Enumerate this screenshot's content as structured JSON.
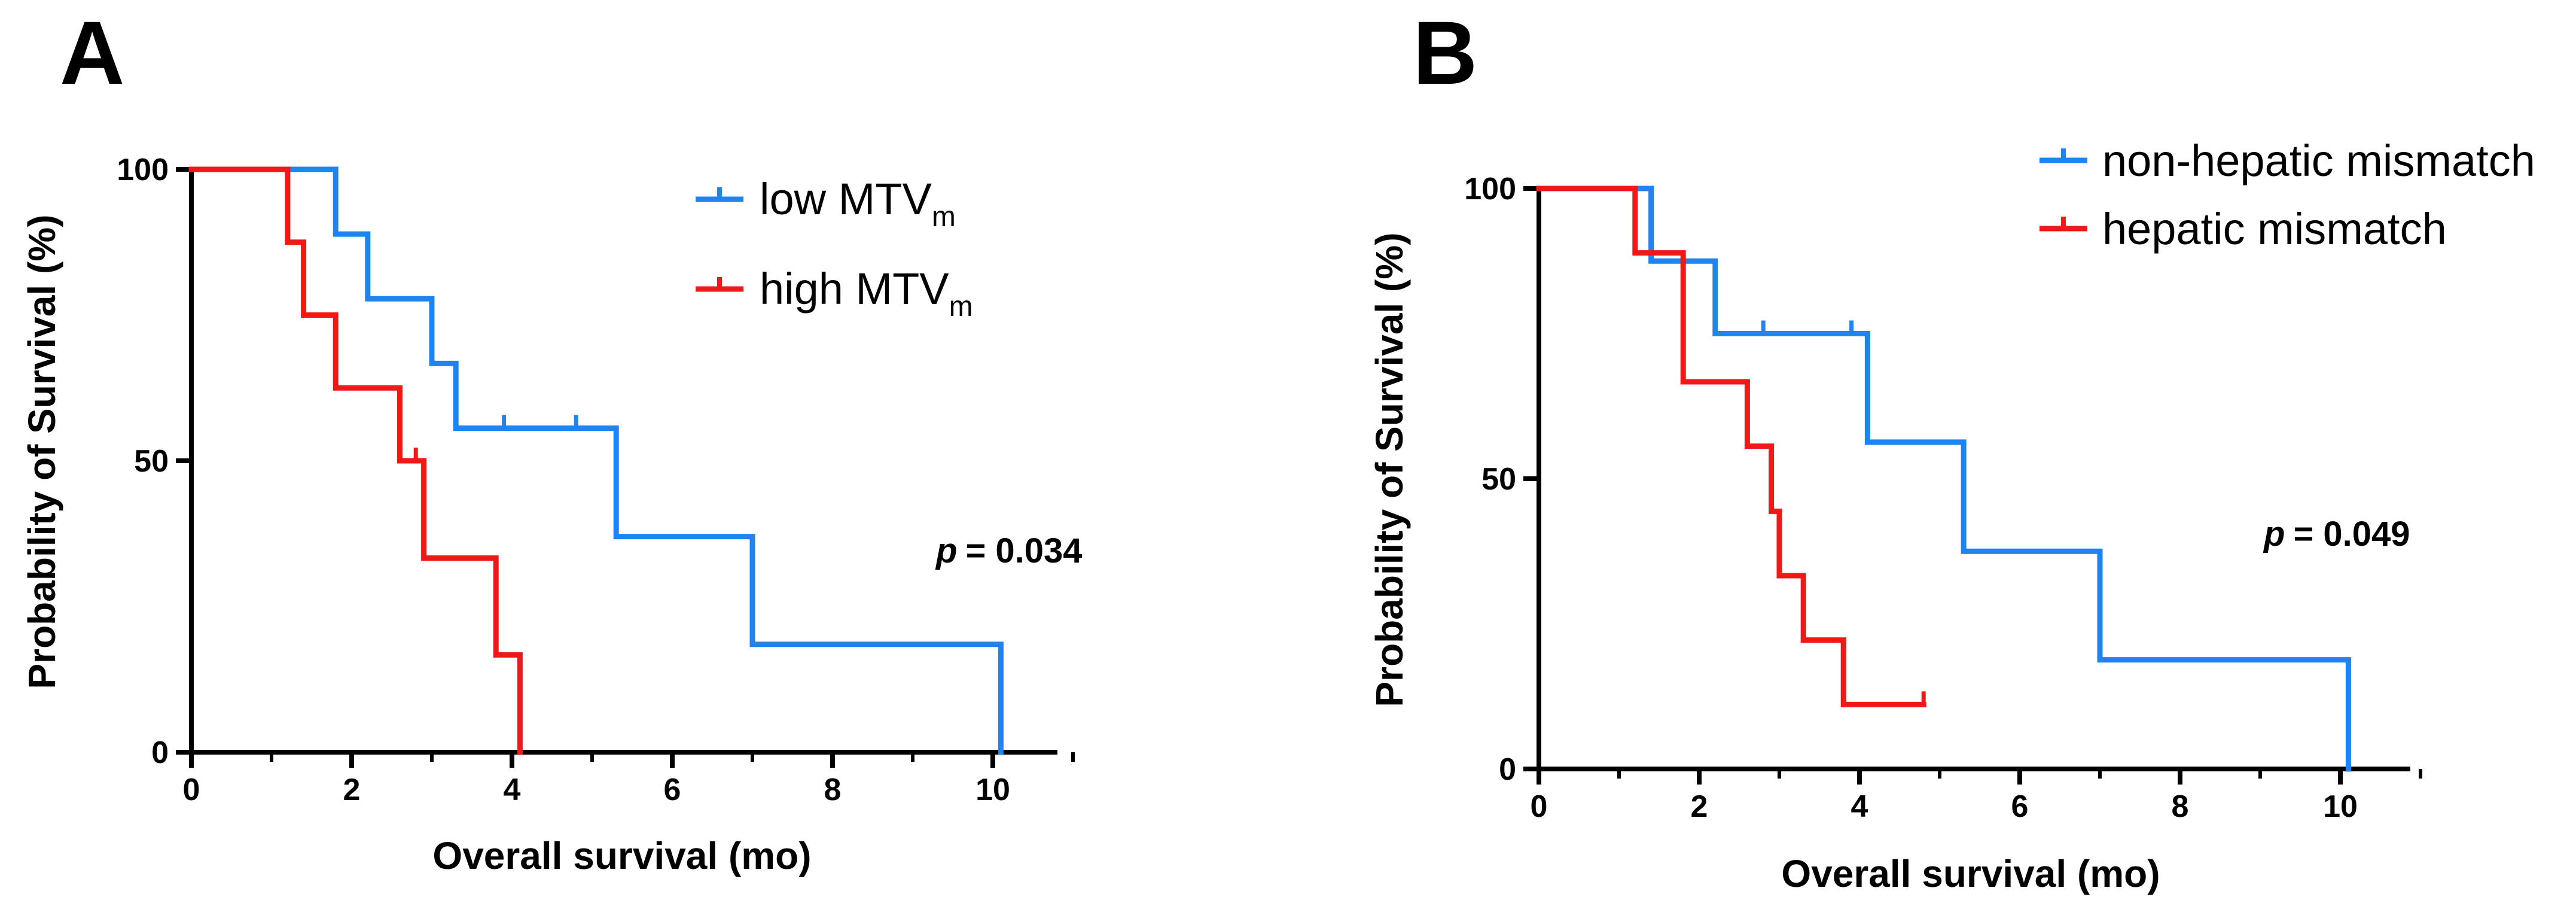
{
  "chart_data": [
    {
      "type": "line",
      "subtype": "kaplan-meier",
      "panel_label": "A",
      "xlabel": "Overall survival (mo)",
      "ylabel": "Probability of Survival (%)",
      "xlim": [
        0,
        11
      ],
      "ylim": [
        0,
        100
      ],
      "xticks": [
        "0",
        "2",
        "4",
        "6",
        "8",
        "10"
      ],
      "yticks": [
        "0",
        "50",
        "100"
      ],
      "p_label": "p",
      "p_value": "= 0.034",
      "legend_position": "top-right",
      "series": [
        {
          "name": "low MTV",
          "name_main": "low MTV",
          "name_sub": "m",
          "color": "#1f84f0",
          "steps": [
            [
              0,
              100
            ],
            [
              1.8,
              100
            ],
            [
              1.8,
              88.9
            ],
            [
              2.2,
              88.9
            ],
            [
              2.2,
              77.8
            ],
            [
              3.0,
              77.8
            ],
            [
              3.0,
              66.7
            ],
            [
              3.3,
              66.7
            ],
            [
              3.3,
              55.6
            ],
            [
              5.3,
              55.6
            ],
            [
              5.3,
              37.0
            ],
            [
              7.0,
              37.0
            ],
            [
              7.0,
              18.5
            ],
            [
              10.1,
              18.5
            ],
            [
              10.1,
              0
            ]
          ],
          "censored": [
            [
              3.9,
              55.6
            ],
            [
              4.8,
              55.6
            ]
          ]
        },
        {
          "name": "high MTV",
          "name_main": "high MTV",
          "name_sub": "m",
          "color": "#f01818",
          "steps": [
            [
              0,
              100
            ],
            [
              1.2,
              100
            ],
            [
              1.2,
              87.5
            ],
            [
              1.4,
              87.5
            ],
            [
              1.4,
              75.0
            ],
            [
              1.8,
              75.0
            ],
            [
              1.8,
              62.5
            ],
            [
              2.6,
              62.5
            ],
            [
              2.6,
              50.0
            ],
            [
              2.9,
              50.0
            ],
            [
              2.9,
              33.3
            ],
            [
              3.8,
              33.3
            ],
            [
              3.8,
              16.7
            ],
            [
              4.1,
              16.7
            ],
            [
              4.1,
              0
            ]
          ],
          "censored": [
            [
              2.8,
              50.0
            ]
          ]
        }
      ]
    },
    {
      "type": "line",
      "subtype": "kaplan-meier",
      "panel_label": "B",
      "xlabel": "Overall survival (mo)",
      "ylabel": "Probability of Survival (%)",
      "xlim": [
        0,
        11
      ],
      "ylim": [
        0,
        100
      ],
      "xticks": [
        "0",
        "2",
        "4",
        "6",
        "8",
        "10"
      ],
      "yticks": [
        "0",
        "50",
        "100"
      ],
      "p_label": "p",
      "p_value": "= 0.049",
      "legend_position": "top-right",
      "series": [
        {
          "name": "non-hepatic mismatch",
          "color": "#1f84f0",
          "steps": [
            [
              0,
              100
            ],
            [
              1.4,
              100
            ],
            [
              1.4,
              87.5
            ],
            [
              2.2,
              87.5
            ],
            [
              2.2,
              75.0
            ],
            [
              4.1,
              75.0
            ],
            [
              4.1,
              56.3
            ],
            [
              5.3,
              56.3
            ],
            [
              5.3,
              37.5
            ],
            [
              7.0,
              37.5
            ],
            [
              7.0,
              18.8
            ],
            [
              10.1,
              18.8
            ],
            [
              10.1,
              0
            ]
          ],
          "censored": [
            [
              2.8,
              75.0
            ],
            [
              3.9,
              75.0
            ]
          ]
        },
        {
          "name": "hepatic mismatch",
          "color": "#f01818",
          "steps": [
            [
              0,
              100
            ],
            [
              1.2,
              100
            ],
            [
              1.2,
              88.9
            ],
            [
              1.8,
              88.9
            ],
            [
              1.8,
              66.7
            ],
            [
              2.6,
              66.7
            ],
            [
              2.6,
              55.6
            ],
            [
              2.9,
              55.6
            ],
            [
              2.9,
              44.4
            ],
            [
              3.0,
              44.4
            ],
            [
              3.0,
              33.3
            ],
            [
              3.3,
              33.3
            ],
            [
              3.3,
              22.2
            ],
            [
              3.8,
              22.2
            ],
            [
              3.8,
              11.1
            ],
            [
              4.8,
              11.1
            ]
          ],
          "censored": [
            [
              4.8,
              11.1
            ]
          ]
        }
      ]
    }
  ]
}
